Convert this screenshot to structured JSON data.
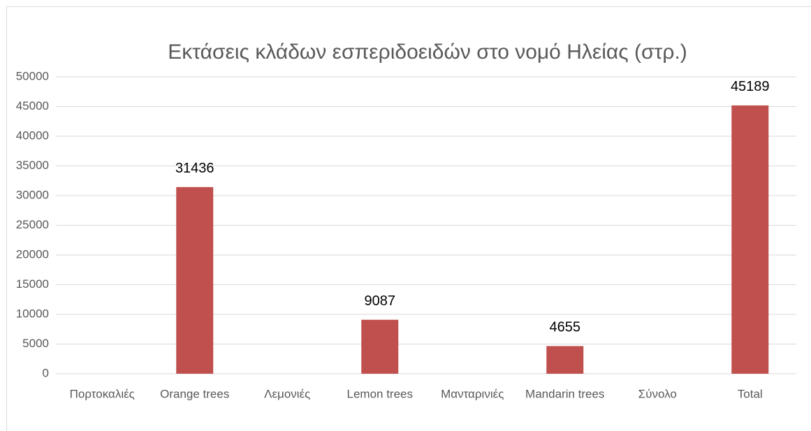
{
  "chart_data": {
    "type": "bar",
    "title": "Εκτάσεις κλάδων εσπεριδοειδών στο νομό Ηλείας (στρ.)",
    "categories": [
      "Πορτοκαλιές",
      "Orange trees",
      "Λεμονιές",
      "Lemon trees",
      "Μανταρινιές",
      "Mandarin trees",
      "Σύνολο",
      "Total"
    ],
    "values": [
      null,
      31436,
      null,
      9087,
      null,
      4655,
      null,
      45189
    ],
    "color": "#c0504d",
    "ylim": [
      0,
      50000
    ],
    "yticks": [
      0,
      5000,
      10000,
      15000,
      20000,
      25000,
      30000,
      35000,
      40000,
      45000,
      50000
    ],
    "grid": true
  }
}
